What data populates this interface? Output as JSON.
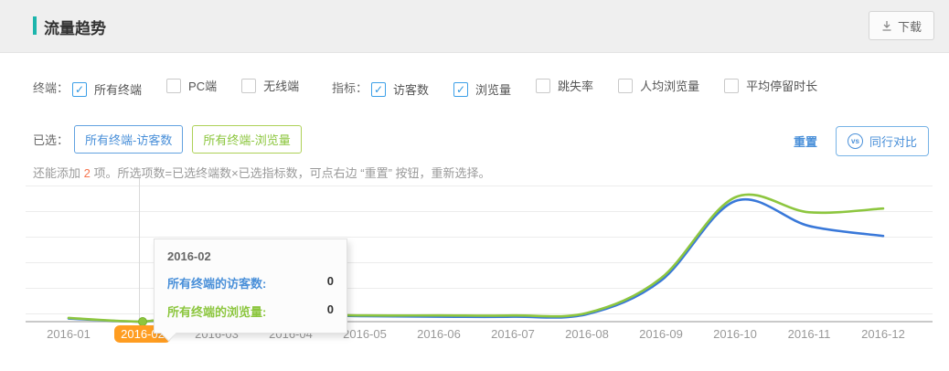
{
  "header": {
    "title": "流量趋势",
    "download_label": "下载"
  },
  "filters": {
    "terminal": {
      "label": "终端：",
      "options": [
        {
          "label": "所有终端",
          "checked": true
        },
        {
          "label": "PC端",
          "checked": false
        },
        {
          "label": "无线端",
          "checked": false
        }
      ]
    },
    "metrics": {
      "label": "指标：",
      "options": [
        {
          "label": "访客数",
          "checked": true
        },
        {
          "label": "浏览量",
          "checked": true
        },
        {
          "label": "跳失率",
          "checked": false
        },
        {
          "label": "人均浏览量",
          "checked": false
        },
        {
          "label": "平均停留时长",
          "checked": false
        }
      ]
    }
  },
  "selected": {
    "label": "已选：",
    "tags": [
      {
        "label": "所有终端-访客数",
        "text_color": "#4a90d9",
        "border_color": "#62a2e0"
      },
      {
        "label": "所有终端-浏览量",
        "text_color": "#8cc63e",
        "border_color": "#aed157"
      }
    ],
    "reset_label": "重置",
    "compare_label": "同行对比",
    "vs_label": "vs"
  },
  "hint": {
    "prefix": "还能添加 ",
    "count": "2",
    "suffix": " 项。所选项数=已选终端数×已选指标数，可点右边 “重置” 按钮，重新选择。"
  },
  "tooltip": {
    "title": "2016-02",
    "rows": [
      {
        "label": "所有终端的访客数:",
        "value": "0",
        "color": "#4a90d9"
      },
      {
        "label": "所有终端的浏览量:",
        "value": "0",
        "color": "#8cc63e"
      }
    ]
  },
  "colors": {
    "accent_teal": "#1cb5ac",
    "highlight_orange": "#ff9d21",
    "hint_count_orange": "#f7744e",
    "link_blue": "#4a90d9",
    "line_blue": "#3978d9",
    "line_green": "#8dc63f"
  },
  "chart_data": {
    "type": "line",
    "x": [
      "2016-01",
      "2016-02",
      "2016-03",
      "2016-04",
      "2016-05",
      "2016-06",
      "2016-07",
      "2016-08",
      "2016-09",
      "2016-10",
      "2016-11",
      "2016-12"
    ],
    "series": [
      {
        "name": "所有终端-访客数",
        "color": "#3978d9",
        "values": [
          2.5,
          0,
          8,
          5.5,
          4.5,
          4,
          4,
          6,
          33,
          97,
          77,
          69
        ]
      },
      {
        "name": "所有终端-浏览量",
        "color": "#8dc63f",
        "values": [
          3,
          0,
          9,
          6,
          5,
          5,
          5,
          7,
          35,
          100,
          88,
          91
        ]
      }
    ],
    "highlighted_x": "2016-02",
    "marker": {
      "x": "2016-02",
      "series": "所有终端-浏览量",
      "value": 0
    },
    "title": "",
    "xlabel": "",
    "ylabel": "",
    "ylim": [
      0,
      100
    ],
    "grid": true,
    "legend_position": "none"
  }
}
